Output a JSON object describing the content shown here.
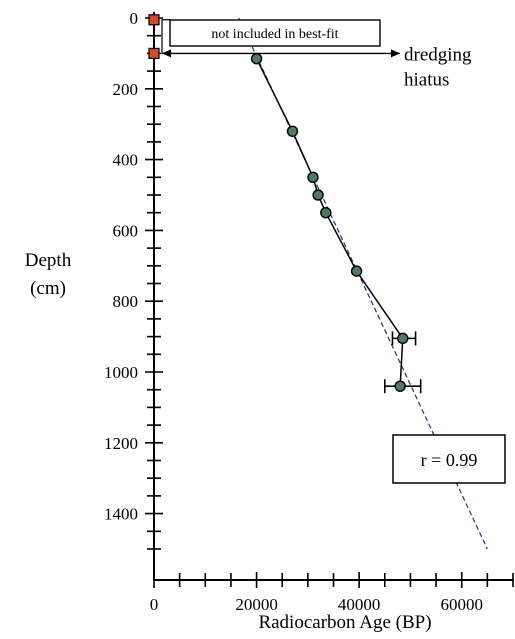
{
  "chart_data": {
    "type": "scatter",
    "xlabel": "Radiocarbon Age (BP)",
    "ylabel_line1": "Depth",
    "ylabel_line2": "(cm)",
    "xlim": [
      0,
      70000
    ],
    "ylim": [
      0,
      1500
    ],
    "y_inverted": true,
    "x_ticks": [
      0,
      20000,
      40000,
      60000
    ],
    "y_ticks": [
      0,
      200,
      400,
      600,
      800,
      1000,
      1200,
      1400
    ],
    "excluded_points": [
      {
        "x": 0,
        "y": 5
      },
      {
        "x": 0,
        "y": 100
      }
    ],
    "series": [
      {
        "values": [
          {
            "x": 20000,
            "y": 115
          },
          {
            "x": 27000,
            "y": 320
          },
          {
            "x": 31000,
            "y": 450
          },
          {
            "x": 32000,
            "y": 500
          },
          {
            "x": 33500,
            "y": 550
          },
          {
            "x": 39500,
            "y": 715
          },
          {
            "x": 48500,
            "y": 905
          },
          {
            "x": 48000,
            "y": 1040
          }
        ]
      }
    ],
    "error_bars": [
      {
        "y": 905,
        "x_low": 46500,
        "x_high": 51000
      },
      {
        "y": 1040,
        "x_low": 45000,
        "x_high": 52000
      }
    ],
    "best_fit": {
      "x1": 16500,
      "y1": 0,
      "x2": 65000,
      "y2": 1500
    },
    "annotations": {
      "excluded_label": "not included in best-fit",
      "hiatus_line1": "dredging",
      "hiatus_line2": "hiatus",
      "r_value": "r = 0.99"
    },
    "colors": {
      "point_fill": "#4f7a66",
      "excluded_fill": "#d04a2a",
      "fit_line": "#2a2a8a",
      "axis": "#000000"
    }
  }
}
